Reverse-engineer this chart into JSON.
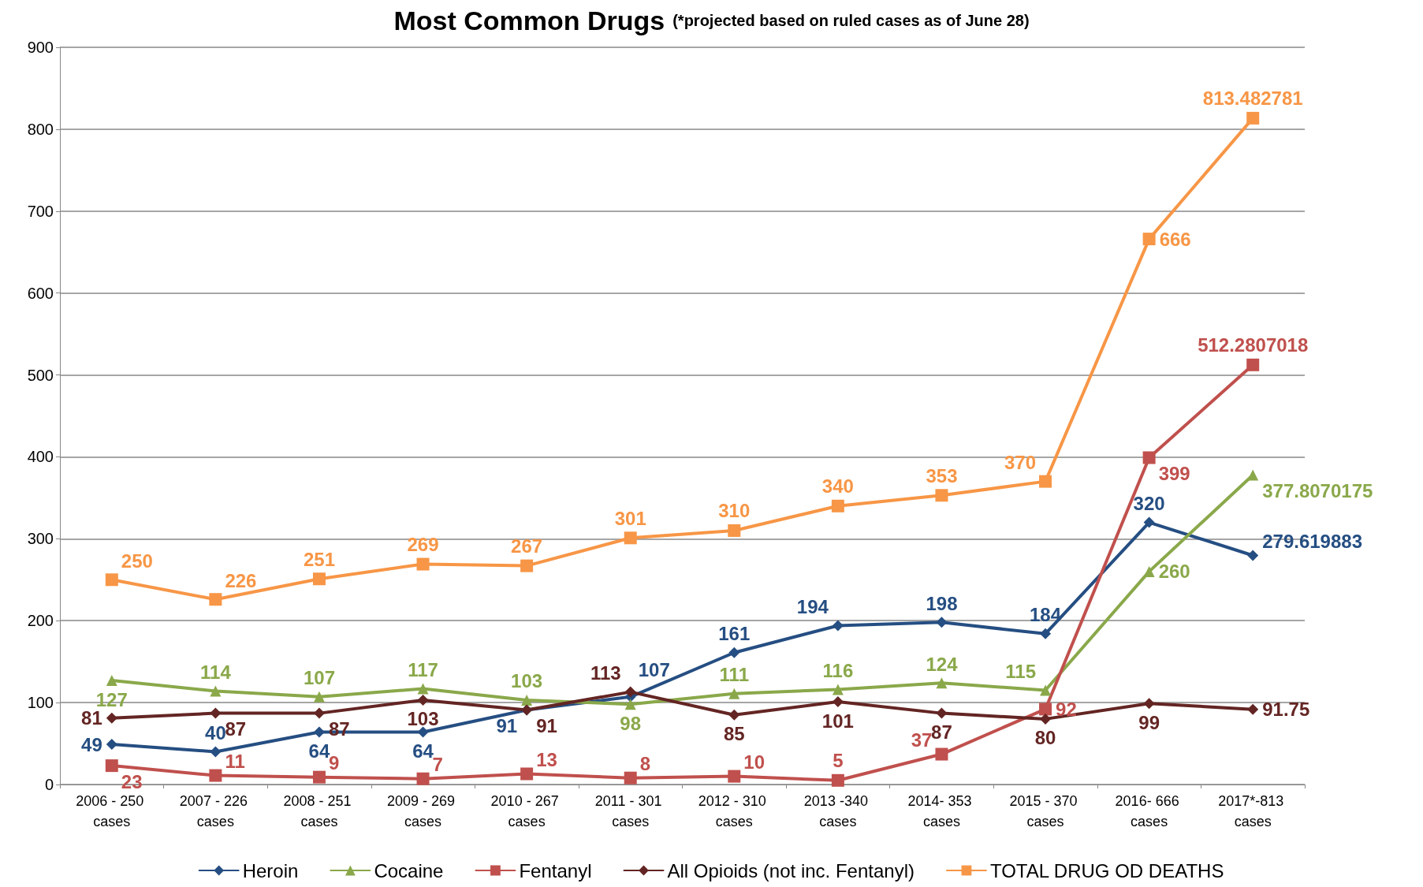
{
  "chart_data": {
    "type": "line",
    "title": "Most Common Drugs",
    "subtitle": "(*projected based on ruled cases as of June 28)",
    "categories": [
      "2006 - 250 cases",
      "2007 - 226 cases",
      "2008 - 251 cases",
      "2009 - 269 cases",
      "2010 - 267 cases",
      "2011 - 301 cases",
      "2012 - 310 cases",
      "2013 -340 cases",
      "2014- 353 cases",
      "2015 - 370 cases",
      "2016- 666 cases",
      "2017*-813 cases"
    ],
    "series": [
      {
        "name": "Heroin",
        "color": "#254e82",
        "marker": "diamond",
        "values": [
          49,
          40,
          64,
          64,
          91,
          107,
          161,
          194,
          198,
          184,
          320,
          279.619883
        ]
      },
      {
        "name": "Cocaine",
        "color": "#8aa84a",
        "marker": "triangle",
        "values": [
          127,
          114,
          107,
          117,
          103,
          98,
          111,
          116,
          124,
          115,
          260,
          377.8070175
        ]
      },
      {
        "name": "Fentanyl",
        "color": "#c0504d",
        "marker": "square",
        "values": [
          23,
          11,
          9,
          7,
          13,
          8,
          10,
          5,
          37,
          92,
          399,
          512.2807018
        ]
      },
      {
        "name": "All Opioids (not inc. Fentanyl)",
        "color": "#632523",
        "marker": "diamond",
        "values": [
          81,
          87,
          87,
          103,
          91,
          113,
          85,
          101,
          87,
          80,
          99,
          91.75
        ]
      },
      {
        "name": "TOTAL DRUG OD DEATHS",
        "color": "#f79646",
        "marker": "square",
        "values": [
          250,
          226,
          251,
          269,
          267,
          301,
          310,
          340,
          353,
          370,
          666,
          813.482781
        ]
      }
    ],
    "ylim": [
      0,
      900
    ],
    "yticks": [
      0,
      100,
      200,
      300,
      400,
      500,
      600,
      700,
      800,
      900
    ],
    "grid": "y",
    "legend": "bottom",
    "data_labels": true,
    "line_style": "solid"
  }
}
